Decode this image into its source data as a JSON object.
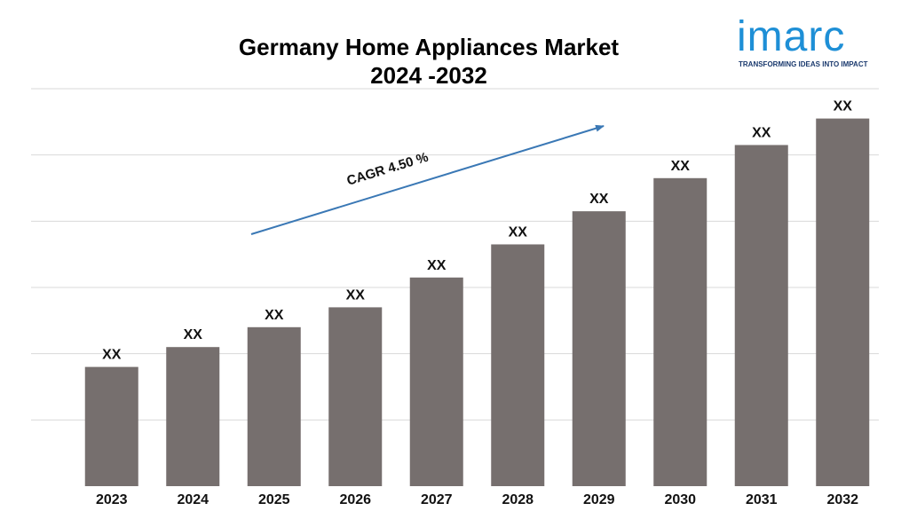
{
  "colors": {
    "bar": "#766f6e",
    "arrow": "#3a78b5",
    "logo": "#1e8fd6",
    "tagline": "#1b3a6e"
  },
  "logo": {
    "wordmark": "imarc",
    "tagline": "TRANSFORMING IDEAS INTO IMPACT"
  },
  "annotation": {
    "cagr_text": "CAGR 4.50 %"
  },
  "chart_data": {
    "type": "bar",
    "title": "Germany Home Appliances Market 2024 -2032",
    "title_lines": [
      "Germany Home Appliances Market",
      "2024 -2032"
    ],
    "categories": [
      "2023",
      "2024",
      "2025",
      "2026",
      "2027",
      "2028",
      "2029",
      "2030",
      "2031",
      "2032"
    ],
    "values": [
      18,
      21,
      24,
      27,
      31.5,
      36.5,
      41.5,
      46.5,
      51.5,
      55.5
    ],
    "data_labels": [
      "XX",
      "XX",
      "XX",
      "XX",
      "XX",
      "XX",
      "XX",
      "XX",
      "XX",
      "XX"
    ],
    "ylim": [
      0,
      60
    ],
    "y_ticks_shown": false,
    "grid": true,
    "legend": "none",
    "xlabel": "",
    "ylabel": ""
  }
}
